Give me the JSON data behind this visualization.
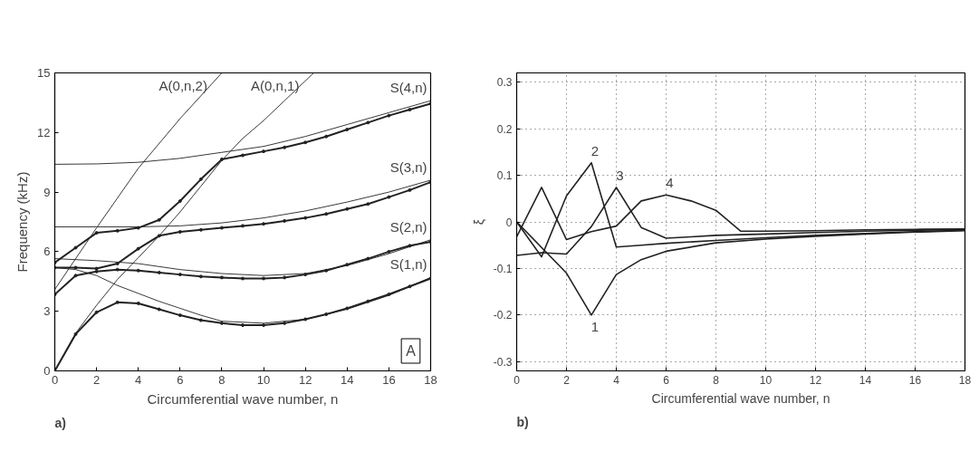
{
  "chart_data": [
    {
      "type": "line",
      "xlabel": "Circumferential wave number, n",
      "ylabel": "Frequency (kHz)",
      "xlim": [
        0,
        18
      ],
      "ylim": [
        0,
        15
      ],
      "xticks": [
        0,
        2,
        4,
        6,
        8,
        10,
        12,
        14,
        16,
        18
      ],
      "yticks": [
        0,
        3,
        6,
        9,
        12,
        15
      ],
      "grid": false,
      "series": [
        {
          "name": "A(0,n,2)",
          "color": "#222222",
          "marker": "none",
          "x": [
            0,
            2,
            4,
            6,
            8
          ],
          "values": [
            4.1,
            7.2,
            10.2,
            12.7,
            15
          ]
        },
        {
          "name": "A(0,n,1)",
          "color": "#222222",
          "marker": "none",
          "x": [
            0,
            1,
            2,
            3,
            4,
            5,
            6,
            7,
            8,
            9,
            10,
            11,
            12.4
          ],
          "values": [
            0,
            1.9,
            3.3,
            4.6,
            5.7,
            6.8,
            8.0,
            9.3,
            10.6,
            11.7,
            12.6,
            13.6,
            15
          ]
        },
        {
          "name": "S(4,n)",
          "color": "#222222",
          "marker": "none",
          "x": [
            0,
            2,
            4,
            6,
            8,
            10,
            12,
            14,
            16,
            18
          ],
          "values": [
            10.4,
            10.42,
            10.5,
            10.7,
            11.0,
            11.3,
            11.8,
            12.4,
            13.0,
            13.6
          ]
        },
        {
          "name": "S(3,n)",
          "color": "#222222",
          "marker": "none",
          "x": [
            0,
            2,
            4,
            6,
            8,
            10,
            12,
            14,
            16,
            18
          ],
          "values": [
            7.25,
            7.25,
            7.25,
            7.3,
            7.45,
            7.7,
            8.05,
            8.5,
            9.0,
            9.6
          ]
        },
        {
          "name": "S(2,n)",
          "color": "#222222",
          "marker": "none",
          "x": [
            0,
            2,
            4,
            6,
            8,
            10,
            12,
            14,
            16,
            18
          ],
          "values": [
            5.65,
            5.55,
            5.4,
            5.1,
            4.9,
            4.8,
            4.9,
            5.3,
            5.9,
            6.6
          ]
        },
        {
          "name": "S(1,n)",
          "color": "#222222",
          "marker": "none",
          "x": [
            0,
            1,
            2,
            3,
            4,
            5,
            6,
            7,
            8,
            10,
            12,
            14,
            16,
            18
          ],
          "values": [
            5.2,
            5.1,
            4.8,
            4.3,
            3.9,
            3.5,
            3.15,
            2.8,
            2.5,
            2.4,
            2.6,
            3.1,
            3.8,
            4.7
          ]
        },
        {
          "color": "#222222",
          "marker": "circle",
          "x": [
            0,
            1,
            2,
            3,
            4,
            5,
            6,
            7,
            8,
            9,
            10,
            11,
            12,
            13,
            14,
            15,
            16,
            17,
            18
          ],
          "values": [
            0,
            1.85,
            2.95,
            3.45,
            3.4,
            3.1,
            2.8,
            2.55,
            2.4,
            2.3,
            2.3,
            2.4,
            2.6,
            2.85,
            3.15,
            3.5,
            3.85,
            4.25,
            4.65
          ]
        },
        {
          "color": "#222222",
          "marker": "circle",
          "x": [
            0,
            1,
            2,
            3,
            4,
            5,
            6,
            7,
            8,
            9,
            10,
            11,
            12,
            13,
            14,
            15,
            16,
            17,
            18
          ],
          "values": [
            3.85,
            4.8,
            5.0,
            5.1,
            5.05,
            4.95,
            4.85,
            4.75,
            4.7,
            4.65,
            4.65,
            4.7,
            4.85,
            5.05,
            5.35,
            5.65,
            6.0,
            6.3,
            6.5
          ]
        },
        {
          "color": "#222222",
          "marker": "circle",
          "x": [
            0,
            1,
            2,
            3,
            4,
            5,
            6,
            7,
            8,
            9,
            10,
            11,
            12,
            13,
            14,
            15,
            16,
            17,
            18
          ],
          "values": [
            5.2,
            5.2,
            5.15,
            5.4,
            6.15,
            6.8,
            7.0,
            7.1,
            7.2,
            7.3,
            7.4,
            7.55,
            7.7,
            7.9,
            8.15,
            8.4,
            8.75,
            9.1,
            9.5
          ]
        },
        {
          "color": "#222222",
          "marker": "circle",
          "x": [
            0,
            1,
            2,
            3,
            4,
            5,
            6,
            7,
            8,
            9,
            10,
            11,
            12,
            13,
            14,
            15,
            16,
            17,
            18
          ],
          "values": [
            5.45,
            6.2,
            6.95,
            7.05,
            7.2,
            7.6,
            8.55,
            9.65,
            10.65,
            10.85,
            11.05,
            11.25,
            11.5,
            11.8,
            12.15,
            12.5,
            12.85,
            13.15,
            13.45
          ]
        }
      ],
      "annotations": [
        "A",
        "a)"
      ]
    },
    {
      "type": "line",
      "xlabel": "Circumferential wave number, n",
      "ylabel": "ξ",
      "xlim": [
        0,
        18
      ],
      "ylim": [
        -0.32,
        0.32
      ],
      "xticks": [
        0,
        2,
        4,
        6,
        8,
        10,
        12,
        14,
        16,
        18
      ],
      "yticks": [
        -0.3,
        -0.2,
        -0.1,
        0,
        0.1,
        0.2,
        0.3
      ],
      "grid": true,
      "series": [
        {
          "name": "1",
          "color": "#222222",
          "marker": "none",
          "x": [
            0,
            2,
            3,
            4,
            5,
            6,
            8,
            10,
            12,
            14,
            16,
            18
          ],
          "values": [
            0,
            -0.11,
            -0.2,
            -0.113,
            -0.081,
            -0.063,
            -0.045,
            -0.037,
            -0.031,
            -0.026,
            -0.022,
            -0.019
          ]
        },
        {
          "name": "2",
          "color": "#222222",
          "marker": "none",
          "x": [
            0,
            1,
            2,
            3,
            4,
            5,
            6,
            8,
            10,
            12,
            14,
            16,
            18
          ],
          "values": [
            0,
            -0.075,
            0.056,
            0.127,
            -0.054,
            -0.05,
            -0.046,
            -0.04,
            -0.034,
            -0.029,
            -0.025,
            -0.021,
            -0.018
          ]
        },
        {
          "name": "3",
          "color": "#222222",
          "marker": "none",
          "x": [
            0,
            1,
            2,
            3,
            4,
            5,
            6,
            7,
            8,
            10,
            12,
            14,
            16,
            18
          ],
          "values": [
            -0.072,
            -0.066,
            -0.069,
            -0.01,
            0.074,
            -0.012,
            -0.035,
            -0.032,
            -0.029,
            -0.026,
            -0.023,
            -0.02,
            -0.018,
            -0.016
          ]
        },
        {
          "name": "4",
          "color": "#222222",
          "marker": "none",
          "x": [
            0,
            1,
            2,
            3,
            4,
            5,
            6,
            7,
            8,
            9,
            10,
            12,
            14,
            16,
            18
          ],
          "values": [
            -0.032,
            0.074,
            -0.038,
            -0.021,
            -0.009,
            0.045,
            0.058,
            0.045,
            0.025,
            -0.02,
            -0.02,
            -0.019,
            -0.017,
            -0.016,
            -0.015
          ]
        }
      ],
      "annotations": [
        "b)"
      ]
    }
  ]
}
